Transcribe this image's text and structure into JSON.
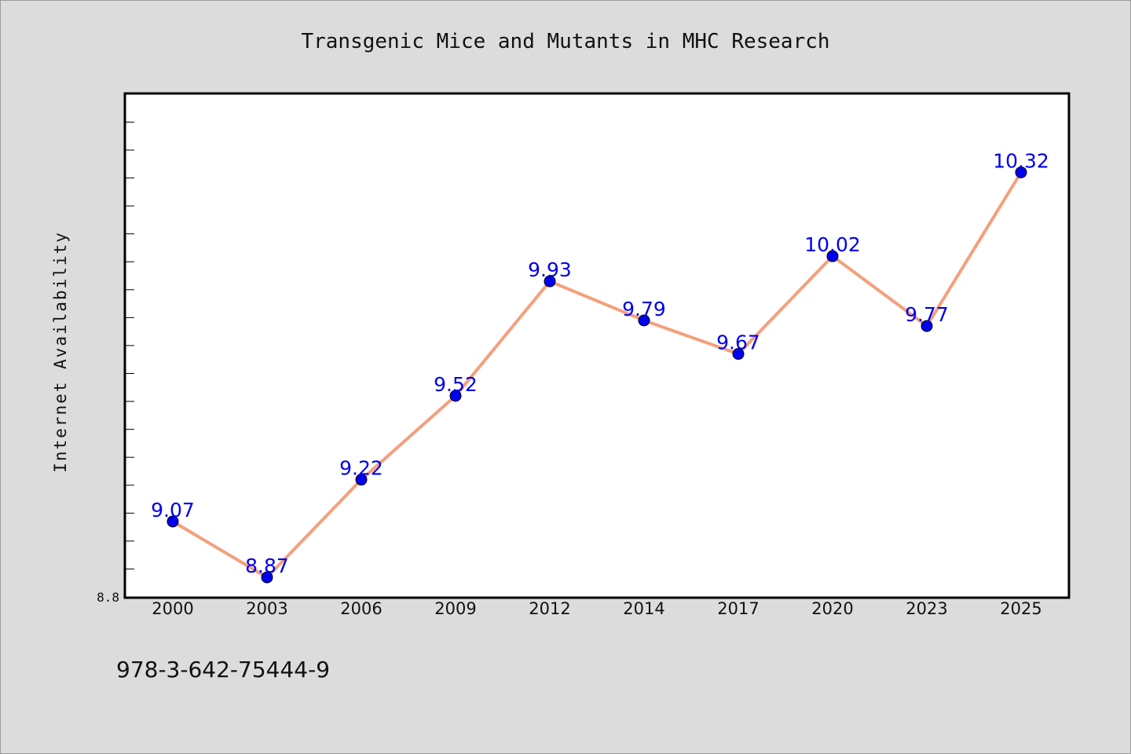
{
  "chart_data": {
    "type": "line",
    "title": "Transgenic Mice and Mutants in MHC Research",
    "xlabel": "",
    "ylabel": "Internet Availability",
    "categories": [
      "2000",
      "2003",
      "2006",
      "2009",
      "2012",
      "2014",
      "2017",
      "2020",
      "2023",
      "2025"
    ],
    "series": [
      {
        "values": [
          9.07,
          8.87,
          9.22,
          9.52,
          9.93,
          9.79,
          9.67,
          10.02,
          9.77,
          10.32
        ]
      }
    ],
    "data_labels": [
      "9.07",
      "8.87",
      "9.22",
      "9.52",
      "9.93",
      "9.79",
      "9.67",
      "10.02",
      "9.77",
      "10.32"
    ],
    "ylim": [
      8.8,
      10.6
    ],
    "yticks_labeled": [
      "8.8"
    ],
    "grid": false,
    "legend": "none",
    "colors": {
      "line": "#f4a07c",
      "marker": "#0000ee",
      "label": "#0000ee",
      "plot_bg": "#ffffff",
      "page_bg": "#dcdcdc"
    }
  },
  "footer": {
    "isbn": "978-3-642-75444-9"
  }
}
